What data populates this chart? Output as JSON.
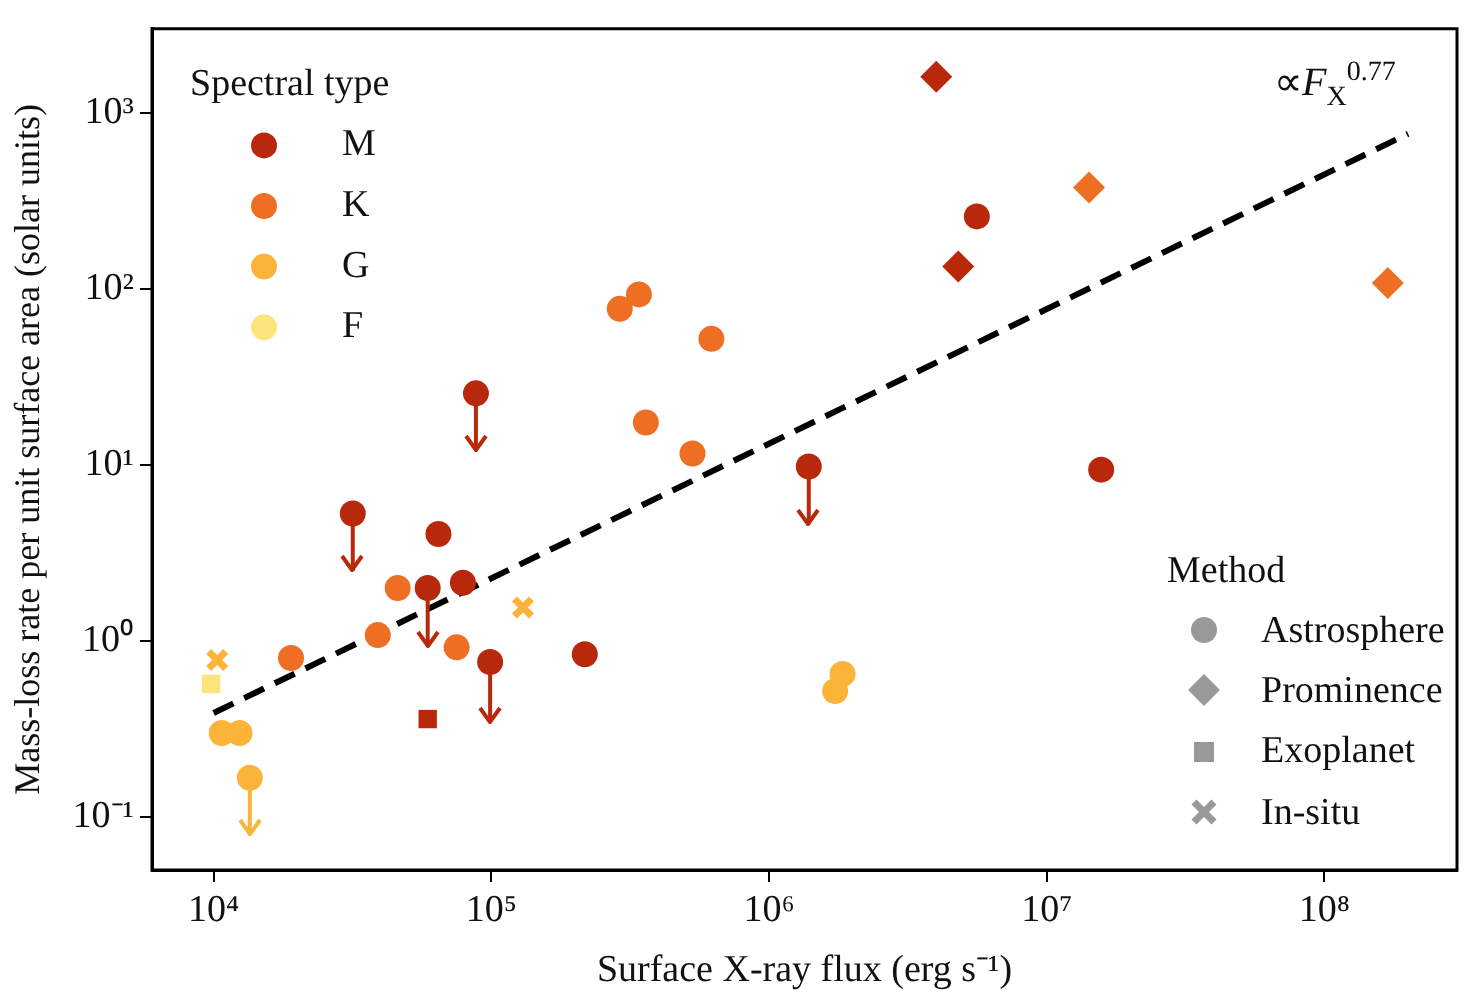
{
  "chart_data": {
    "type": "scatter",
    "xlabel": "Surface X-ray flux (erg s⁻¹)",
    "ylabel": "Mass-loss rate per unit surface area (solar units)",
    "log": "xy",
    "xlim": [
      6000,
      300000000
    ],
    "ylim": [
      0.05,
      3000
    ],
    "xticks": [
      {
        "value": 10000,
        "label": "10⁴"
      },
      {
        "value": 100000,
        "label": "10⁵"
      },
      {
        "value": 1000000,
        "label": "10⁶"
      },
      {
        "value": 10000000,
        "label": "10⁷"
      },
      {
        "value": 100000000,
        "label": "10⁸"
      }
    ],
    "yticks": [
      {
        "value": 0.1,
        "label": "10⁻¹"
      },
      {
        "value": 1,
        "label": "10⁰"
      },
      {
        "value": 10,
        "label": "10¹"
      },
      {
        "value": 100,
        "label": "10²"
      },
      {
        "value": 1000,
        "label": "10³"
      }
    ],
    "grid": false,
    "legend": "top left",
    "legend_title": "Spectral type",
    "annotations": [
      "Method",
      "Astrosphere",
      "Prominence",
      "Exoplanet",
      "In-situ"
    ],
    "series": [
      {
        "name": "M",
        "color": "#b8290c",
        "marker": "circle",
        "x": [
          88000,
          1390000,
          31700,
          64500,
          59000,
          79000,
          99000,
          217000,
          5600000,
          15700000
        ],
        "values": [
          25.5,
          9.8,
          5.3,
          4.05,
          2.0,
          2.14,
          0.76,
          0.84,
          258,
          9.4
        ],
        "errors": [
          [
            12,
            25.5
          ],
          [
            4.6,
            9.8
          ],
          [
            2.5,
            5.3
          ],
          null,
          [
            0.93,
            2.0
          ],
          null,
          [
            0.35,
            0.76
          ],
          null,
          null,
          null
        ]
      },
      {
        "name": "K",
        "color": "#ee6e23",
        "marker": "circle",
        "x": [
          290000,
          340000,
          620000,
          360000,
          530000,
          46000,
          39000,
          75000,
          19000
        ],
        "values": [
          77,
          93,
          52,
          17.4,
          11.6,
          2.0,
          1.08,
          0.92,
          0.8
        ]
      },
      {
        "name": "G",
        "color": "#fcb33a",
        "marker": "circle",
        "x": [
          10700,
          12400,
          13500,
          1840000,
          1730000
        ],
        "values": [
          0.3,
          0.3,
          0.167,
          0.65,
          0.52
        ],
        "errors": [
          null,
          null,
          [
            0.08,
            0.167
          ],
          null,
          null
        ]
      },
      {
        "name": "F",
        "color": "#fde47c",
        "marker": "square",
        "x": [
          9800
        ],
        "values": [
          0.57
        ]
      },
      {
        "color": "#b8290c",
        "marker": "diamond",
        "x": [
          4000000,
          4800000
        ],
        "values": [
          1600,
          134
        ]
      },
      {
        "color": "#ee6e23",
        "marker": "diamond",
        "x": [
          14200000,
          169000000
        ],
        "values": [
          376,
          108
        ]
      },
      {
        "color": "#b8290c",
        "marker": "square",
        "x": [
          59000
        ],
        "values": [
          0.36
        ]
      },
      {
        "color": "#fcb33a",
        "marker": "cross",
        "x": [
          130000,
          10300
        ],
        "values": [
          1.55,
          0.78
        ]
      },
      {
        "type": "line",
        "name": "∝F$_{X}$$^{0.77}$",
        "color": "#000000",
        "marker": "none",
        "line_style": "dashed",
        "x": [
          10000,
          200000000
        ],
        "values": [
          0.39,
          760
        ]
      }
    ]
  }
}
